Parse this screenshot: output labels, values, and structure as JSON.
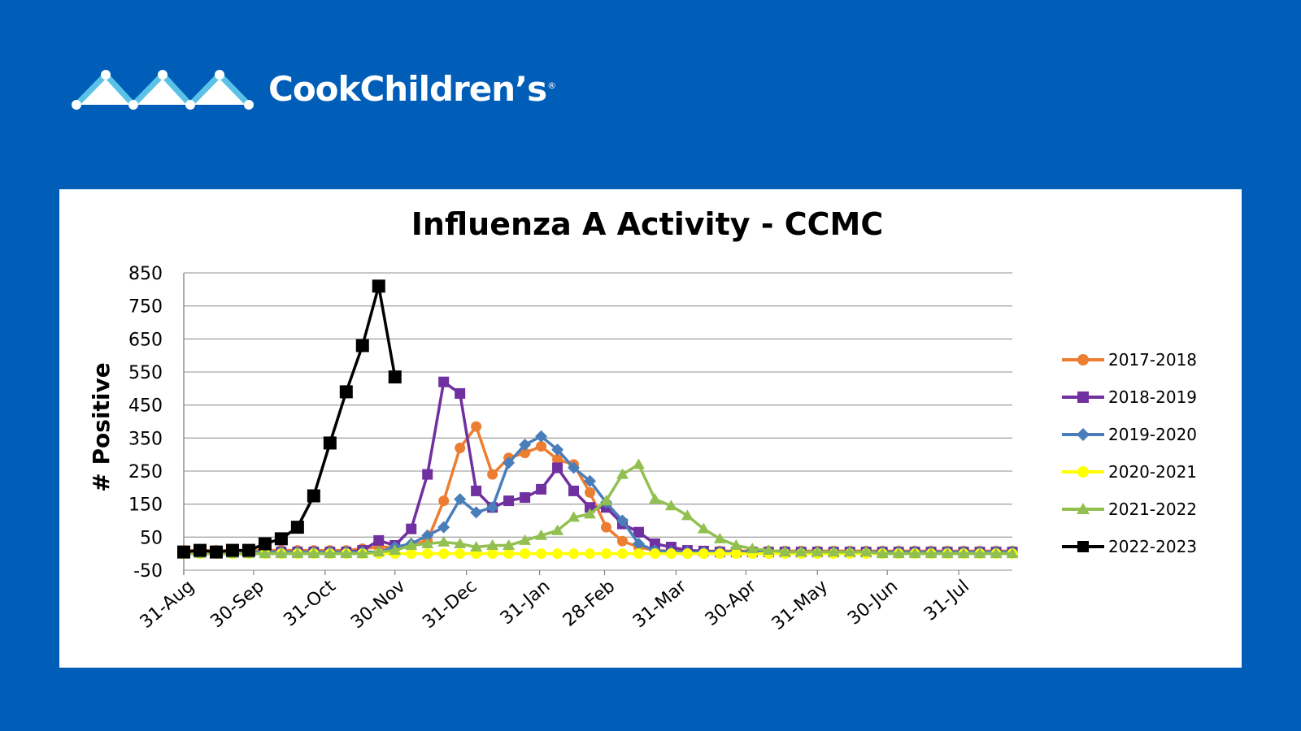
{
  "brand": {
    "name": "CookChildren’s",
    "registered_mark": "®",
    "logo_icon": "three-mountain-peaks-icon"
  },
  "colors": {
    "background": "#005EB8",
    "panel": "#FFFFFF"
  },
  "chart_data": {
    "type": "line",
    "title": "Influenza A Activity - CCMC",
    "ylabel": "# Positive",
    "xlabel": "",
    "ylim": [
      -50,
      850
    ],
    "yticks": [
      850,
      750,
      650,
      550,
      450,
      350,
      250,
      150,
      50,
      -50
    ],
    "xtick_labels": [
      "31-Aug",
      "30-Sep",
      "31-Oct",
      "30-Nov",
      "31-Dec",
      "31-Jan",
      "28-Feb",
      "31-Mar",
      "30-Apr",
      "31-May",
      "30-Jun",
      "31-Jul"
    ],
    "xtick_weeks": [
      0,
      4.3,
      8.7,
      13,
      17.4,
      21.9,
      25.9,
      30.3,
      34.6,
      39,
      43.3,
      47.7
    ],
    "x_weeks": 52,
    "grid": "horizontal",
    "legend_position": "right",
    "series": [
      {
        "name": "2017-2018",
        "color": "#ED7D31",
        "marker": "circle",
        "values": [
          10,
          10,
          10,
          10,
          10,
          10,
          10,
          10,
          10,
          10,
          10,
          15,
          20,
          20,
          25,
          40,
          160,
          320,
          385,
          240,
          290,
          305,
          325,
          285,
          270,
          185,
          80,
          38,
          20,
          10,
          8,
          8,
          8,
          8,
          8,
          8,
          8,
          8,
          8,
          8,
          8,
          8,
          8,
          8,
          8,
          8,
          8,
          8,
          8,
          8,
          8,
          8
        ]
      },
      {
        "name": "2018-2019",
        "color": "#7030A0",
        "marker": "square",
        "values": [
          5,
          5,
          5,
          5,
          5,
          5,
          5,
          5,
          5,
          5,
          5,
          10,
          40,
          25,
          75,
          240,
          520,
          485,
          190,
          140,
          160,
          170,
          195,
          260,
          190,
          140,
          140,
          90,
          65,
          30,
          20,
          10,
          8,
          5,
          5,
          5,
          5,
          5,
          5,
          5,
          5,
          5,
          5,
          5,
          5,
          5,
          5,
          5,
          5,
          5,
          5,
          5
        ]
      },
      {
        "name": "2019-2020",
        "color": "#4A7EBB",
        "marker": "diamond",
        "values": [
          5,
          5,
          5,
          5,
          5,
          5,
          5,
          5,
          5,
          5,
          5,
          5,
          5,
          20,
          30,
          55,
          80,
          165,
          125,
          140,
          275,
          330,
          355,
          315,
          260,
          220,
          155,
          100,
          30,
          10,
          5,
          5,
          5,
          5,
          5,
          5,
          5,
          5,
          5,
          5,
          5,
          5,
          5,
          5,
          5,
          5,
          5,
          5,
          5,
          5,
          5,
          5
        ]
      },
      {
        "name": "2020-2021",
        "color": "#FFFF00",
        "marker": "circle",
        "values": [
          0,
          0,
          0,
          0,
          0,
          0,
          0,
          0,
          0,
          0,
          0,
          0,
          0,
          0,
          0,
          0,
          0,
          0,
          0,
          0,
          0,
          0,
          0,
          0,
          0,
          0,
          0,
          0,
          0,
          0,
          0,
          0,
          0,
          0,
          0,
          0,
          0,
          0,
          0,
          0,
          0,
          0,
          0,
          0,
          0,
          0,
          0,
          0,
          0,
          0,
          0,
          0
        ]
      },
      {
        "name": "2021-2022",
        "color": "#92C050",
        "marker": "triangle",
        "values": [
          0,
          0,
          0,
          0,
          0,
          0,
          0,
          0,
          0,
          0,
          0,
          0,
          5,
          10,
          25,
          30,
          35,
          30,
          20,
          25,
          25,
          40,
          55,
          70,
          110,
          120,
          160,
          240,
          270,
          165,
          145,
          115,
          75,
          45,
          25,
          15,
          10,
          5,
          5,
          5,
          5,
          5,
          5,
          0,
          0,
          0,
          0,
          0,
          0,
          0,
          0,
          0
        ]
      },
      {
        "name": "2022-2023",
        "color": "#000000",
        "marker": "square",
        "values": [
          5,
          10,
          5,
          10,
          10,
          30,
          45,
          80,
          175,
          335,
          490,
          630,
          810,
          535
        ]
      }
    ]
  }
}
